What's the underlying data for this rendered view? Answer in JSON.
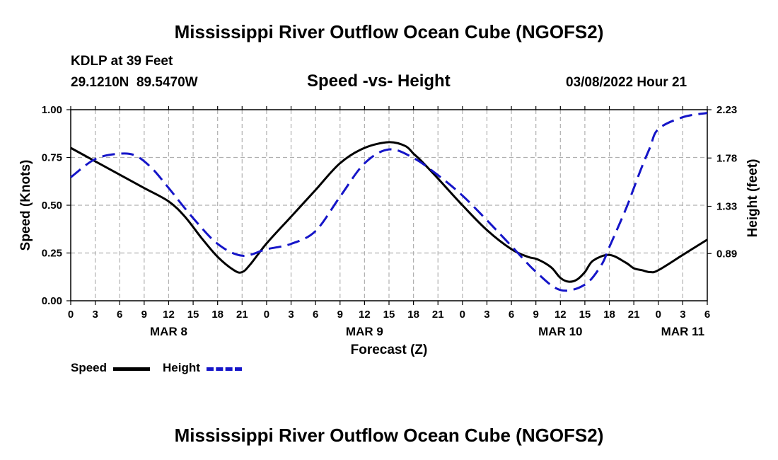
{
  "page_title": "Mississippi River Outflow Ocean Cube (NGOFS2)",
  "footer_title": "Mississippi River Outflow Ocean Cube (NGOFS2)",
  "station": {
    "name": "KDLP at 39 Feet",
    "lat": "29.1210N",
    "lon": "89.5470W"
  },
  "subtitle": "Speed -vs- Height",
  "datetime": "03/08/2022 Hour 21",
  "legend": {
    "speed_label": "Speed",
    "height_label": "Height"
  },
  "colors": {
    "speed": "#000000",
    "height": "#1515c8",
    "grid": "#b0b0b0"
  },
  "chart_data": {
    "type": "line",
    "title": "Speed -vs- Height",
    "xlabel": "Forecast (Z)",
    "ylabel": "Speed (Knots)",
    "y2label": "Height (feet)",
    "x_range_hours": [
      0,
      78
    ],
    "ylim": [
      0,
      1.0
    ],
    "y2lim": [
      0.45,
      2.23
    ],
    "x_ticks": [
      0,
      3,
      6,
      9,
      12,
      15,
      18,
      21,
      24,
      27,
      30,
      33,
      36,
      39,
      42,
      45,
      48,
      51,
      54,
      57,
      60,
      63,
      66,
      69,
      72,
      75,
      78
    ],
    "x_tick_labels": [
      "0",
      "3",
      "6",
      "9",
      "12",
      "15",
      "18",
      "21",
      "0",
      "3",
      "6",
      "9",
      "12",
      "15",
      "18",
      "21",
      "0",
      "3",
      "6",
      "9",
      "12",
      "15",
      "18",
      "21",
      "0",
      "3",
      "6"
    ],
    "day_labels": [
      {
        "label": "MAR 8",
        "hour": 12
      },
      {
        "label": "MAR 9",
        "hour": 36
      },
      {
        "label": "MAR 10",
        "hour": 60
      },
      {
        "label": "MAR 11",
        "hour": 75
      }
    ],
    "y_ticks": [
      0.0,
      0.25,
      0.5,
      0.75,
      1.0
    ],
    "y_tick_labels": [
      "0.00",
      "0.25",
      "0.50",
      "0.75",
      "1.00"
    ],
    "y2_ticks": [
      0.89,
      1.33,
      1.78,
      2.23
    ],
    "y2_tick_labels": [
      "0.89",
      "1.33",
      "1.78",
      "2.23"
    ],
    "grid": true,
    "series": [
      {
        "name": "Speed",
        "axis": "left",
        "style": "solid",
        "x": [
          0,
          3,
          6,
          9,
          12,
          14,
          16,
          18,
          20,
          21,
          22,
          24,
          27,
          30,
          33,
          36,
          39,
          41,
          42,
          43,
          45,
          48,
          51,
          54,
          56,
          57,
          58,
          59,
          60,
          61,
          62,
          63,
          64,
          66,
          68,
          69,
          70,
          71,
          72,
          75,
          78
        ],
        "values": [
          0.8,
          0.73,
          0.66,
          0.59,
          0.52,
          0.44,
          0.33,
          0.23,
          0.16,
          0.15,
          0.19,
          0.3,
          0.44,
          0.58,
          0.72,
          0.8,
          0.83,
          0.81,
          0.77,
          0.73,
          0.64,
          0.5,
          0.37,
          0.27,
          0.23,
          0.22,
          0.2,
          0.17,
          0.12,
          0.1,
          0.11,
          0.15,
          0.21,
          0.24,
          0.2,
          0.17,
          0.16,
          0.15,
          0.16,
          0.24,
          0.32
        ]
      },
      {
        "name": "Height",
        "axis": "right",
        "style": "dashed",
        "x": [
          0,
          3,
          6,
          8,
          10,
          12,
          15,
          18,
          21,
          24,
          27,
          30,
          33,
          36,
          39,
          42,
          45,
          48,
          51,
          54,
          57,
          60,
          63,
          65,
          66,
          68,
          69,
          70,
          71,
          72,
          75,
          78
        ],
        "values": [
          1.6,
          1.77,
          1.82,
          1.8,
          1.68,
          1.5,
          1.22,
          0.98,
          0.87,
          0.93,
          0.98,
          1.1,
          1.42,
          1.73,
          1.86,
          1.78,
          1.62,
          1.43,
          1.2,
          0.96,
          0.72,
          0.55,
          0.6,
          0.78,
          0.95,
          1.3,
          1.5,
          1.7,
          1.88,
          2.05,
          2.16,
          2.2
        ]
      }
    ]
  }
}
